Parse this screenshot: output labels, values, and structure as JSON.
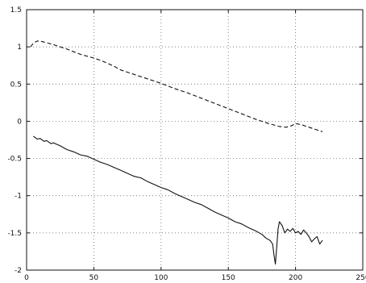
{
  "chart_data": {
    "type": "line",
    "title": "",
    "xlabel": "",
    "ylabel": "",
    "xlim": [
      0,
      250
    ],
    "ylim": [
      -2,
      1.5
    ],
    "xticks": [
      "0",
      "50",
      "100",
      "150",
      "200",
      "250"
    ],
    "yticks": [
      "-2",
      "-1.5",
      "-1",
      "-0.5",
      "0",
      "0.5",
      "1",
      "1.5"
    ],
    "grid": true,
    "series": [
      {
        "style": "dashed",
        "color": "#111111",
        "x": [
          3,
          5,
          8,
          12,
          20,
          30,
          40,
          50,
          55,
          60,
          65,
          70,
          80,
          90,
          100,
          110,
          120,
          130,
          140,
          150,
          160,
          170,
          180,
          188,
          193,
          197,
          200,
          205,
          210,
          215,
          220
        ],
        "y": [
          1.0,
          1.05,
          1.08,
          1.07,
          1.03,
          0.97,
          0.9,
          0.85,
          0.82,
          0.78,
          0.74,
          0.69,
          0.63,
          0.57,
          0.51,
          0.44,
          0.38,
          0.31,
          0.24,
          0.17,
          0.1,
          0.03,
          -0.03,
          -0.07,
          -0.08,
          -0.06,
          -0.03,
          -0.05,
          -0.08,
          -0.11,
          -0.14
        ]
      },
      {
        "style": "solid",
        "color": "#111111",
        "x": [
          5,
          8,
          10,
          13,
          15,
          18,
          20,
          25,
          30,
          35,
          40,
          45,
          50,
          55,
          60,
          65,
          70,
          75,
          80,
          85,
          90,
          95,
          100,
          105,
          110,
          115,
          120,
          125,
          130,
          135,
          140,
          145,
          150,
          155,
          160,
          165,
          170,
          175,
          178,
          181,
          183,
          184,
          185,
          186,
          187,
          188,
          190,
          192,
          194,
          196,
          198,
          200,
          202,
          204,
          206,
          208,
          210,
          212,
          214,
          216,
          218,
          220
        ],
        "y": [
          -0.2,
          -0.24,
          -0.23,
          -0.27,
          -0.26,
          -0.3,
          -0.29,
          -0.33,
          -0.38,
          -0.41,
          -0.45,
          -0.47,
          -0.51,
          -0.55,
          -0.58,
          -0.62,
          -0.66,
          -0.7,
          -0.74,
          -0.76,
          -0.81,
          -0.85,
          -0.89,
          -0.92,
          -0.97,
          -1.01,
          -1.05,
          -1.09,
          -1.12,
          -1.17,
          -1.22,
          -1.26,
          -1.3,
          -1.35,
          -1.38,
          -1.43,
          -1.47,
          -1.52,
          -1.57,
          -1.6,
          -1.65,
          -1.8,
          -1.92,
          -1.7,
          -1.45,
          -1.35,
          -1.4,
          -1.5,
          -1.45,
          -1.48,
          -1.44,
          -1.5,
          -1.48,
          -1.52,
          -1.46,
          -1.5,
          -1.55,
          -1.62,
          -1.58,
          -1.55,
          -1.65,
          -1.6
        ]
      }
    ]
  }
}
